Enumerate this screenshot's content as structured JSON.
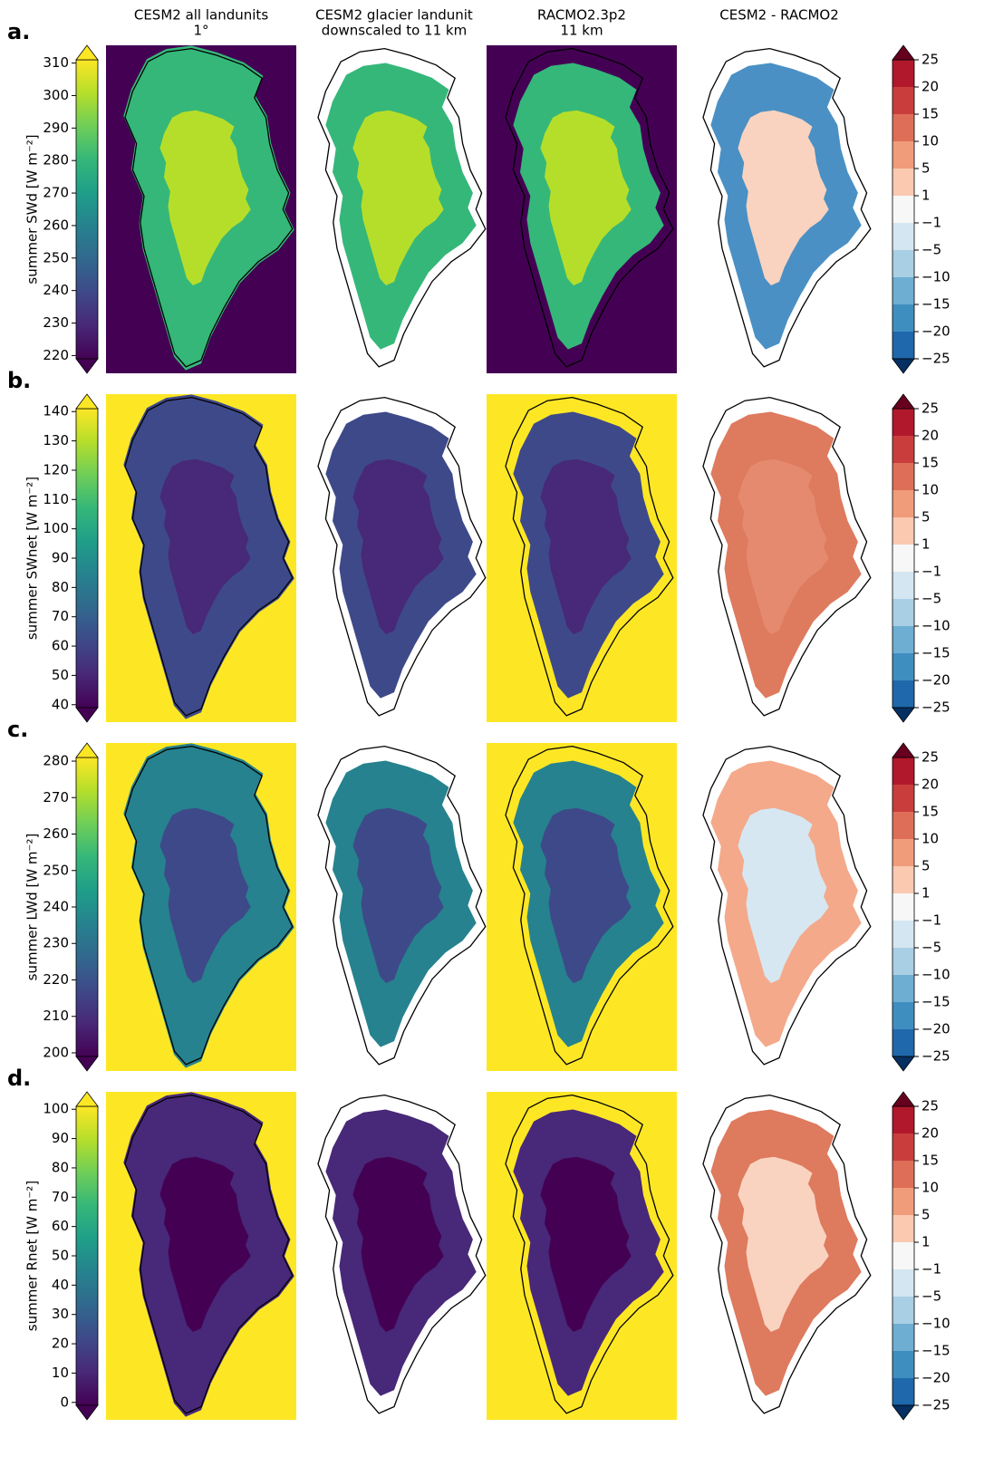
{
  "chart_data": {
    "type": "map-grid",
    "column_titles": [
      [
        "CESM2 all landunits",
        "1°"
      ],
      [
        "CESM2 glacier landunit",
        "downscaled to 11 km"
      ],
      [
        "RACMO2.3p2",
        "11 km"
      ],
      [
        "CESM2 - RACMO2"
      ]
    ],
    "colormap": "viridis",
    "rows": [
      {
        "label": "a.",
        "ylabel": "summer SWd [W m⁻²]",
        "ylim": [
          219,
          311
        ],
        "yticks": [
          220,
          230,
          240,
          250,
          260,
          270,
          280,
          290,
          300,
          310
        ]
      },
      {
        "label": "b.",
        "ylabel": "summer SWnet [W m⁻²]",
        "ylim": [
          39,
          141
        ],
        "yticks": [
          40,
          50,
          60,
          70,
          80,
          90,
          100,
          110,
          120,
          130,
          140
        ]
      },
      {
        "label": "c.",
        "ylabel": "summer LWd [W m⁻²]",
        "ylim": [
          199,
          281
        ],
        "yticks": [
          200,
          210,
          220,
          230,
          240,
          250,
          260,
          270,
          280
        ]
      },
      {
        "label": "d.",
        "ylabel": "summer Rnet [W m⁻²]",
        "ylim": [
          -1,
          101
        ],
        "yticks": [
          0,
          10,
          20,
          30,
          40,
          50,
          60,
          70,
          80,
          90,
          100
        ]
      }
    ],
    "diff_colorbar": {
      "ticks": [
        25,
        20,
        15,
        10,
        5,
        1,
        {
          "value": -1,
          "label": "−1"
        },
        {
          "value": -5,
          "label": "−5"
        },
        {
          "value": -10,
          "label": "−10"
        },
        {
          "value": -15,
          "label": "−15"
        },
        {
          "value": -20,
          "label": "−20"
        },
        {
          "value": -25,
          "label": "−25"
        }
      ],
      "colors": [
        "#b2182b",
        "#c93e3c",
        "#de6e58",
        "#f09c7b",
        "#fac9b0",
        "#f7f7f7",
        "#d4e6f1",
        "#a9cfe5",
        "#6eaed2",
        "#3f8ec0",
        "#1f68ab"
      ],
      "over_color": "#67001f",
      "under_color": "#053061"
    }
  }
}
